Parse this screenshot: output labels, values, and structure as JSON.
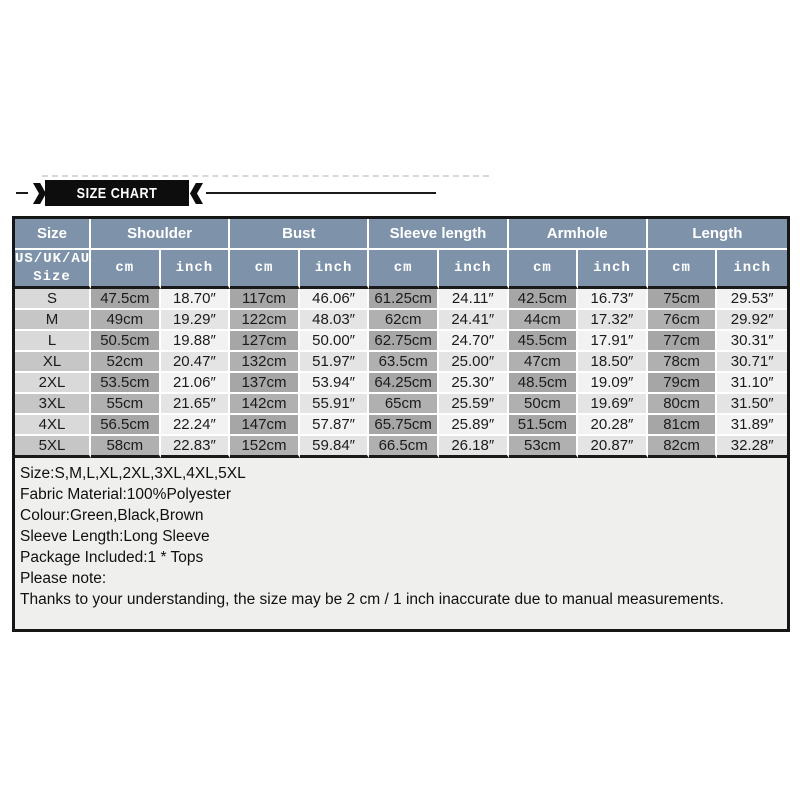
{
  "banner": {
    "title": "SIZE CHART"
  },
  "table": {
    "headers": [
      "Size",
      "Shoulder",
      "Bust",
      "Sleeve length",
      "Armhole",
      "Length"
    ],
    "subheader": {
      "group_label_line1": "US/UK/AU",
      "group_label_line2": "Size",
      "unit_cm": "cm",
      "unit_inch": "inch"
    }
  },
  "chart_data": {
    "type": "table",
    "title": "SIZE CHART",
    "columns": [
      "US/UK/AU Size",
      "Shoulder cm",
      "Shoulder inch",
      "Bust cm",
      "Bust inch",
      "Sleeve length cm",
      "Sleeve length inch",
      "Armhole cm",
      "Armhole inch",
      "Length cm",
      "Length inch"
    ],
    "rows": [
      [
        "S",
        "47.5cm",
        "18.70″",
        "117cm",
        "46.06″",
        "61.25cm",
        "24.11″",
        "42.5cm",
        "16.73″",
        "75cm",
        "29.53″"
      ],
      [
        "M",
        "49cm",
        "19.29″",
        "122cm",
        "48.03″",
        "62cm",
        "24.41″",
        "44cm",
        "17.32″",
        "76cm",
        "29.92″"
      ],
      [
        "L",
        "50.5cm",
        "19.88″",
        "127cm",
        "50.00″",
        "62.75cm",
        "24.70″",
        "45.5cm",
        "17.91″",
        "77cm",
        "30.31″"
      ],
      [
        "XL",
        "52cm",
        "20.47″",
        "132cm",
        "51.97″",
        "63.5cm",
        "25.00″",
        "47cm",
        "18.50″",
        "78cm",
        "30.71″"
      ],
      [
        "2XL",
        "53.5cm",
        "21.06″",
        "137cm",
        "53.94″",
        "64.25cm",
        "25.30″",
        "48.5cm",
        "19.09″",
        "79cm",
        "31.10″"
      ],
      [
        "3XL",
        "55cm",
        "21.65″",
        "142cm",
        "55.91″",
        "65cm",
        "25.59″",
        "50cm",
        "19.69″",
        "80cm",
        "31.50″"
      ],
      [
        "4XL",
        "56.5cm",
        "22.24″",
        "147cm",
        "57.87″",
        "65.75cm",
        "25.89″",
        "51.5cm",
        "20.28″",
        "81cm",
        "31.89″"
      ],
      [
        "5XL",
        "58cm",
        "22.83″",
        "152cm",
        "59.84″",
        "66.5cm",
        "26.18″",
        "53cm",
        "20.87″",
        "82cm",
        "32.28″"
      ]
    ]
  },
  "notes": {
    "lines": [
      "Size:S,M,L,XL,2XL,3XL,4XL,5XL",
      "Fabric Material:100%Polyester",
      "Colour:Green,Black,Brown",
      "Sleeve Length:Long Sleeve",
      "Package Included:1 * Tops",
      "Please note:",
      "Thanks to your understanding, the size may be 2 cm / 1 inch inaccurate due to manual measurements."
    ]
  },
  "colors": {
    "banner_bg": "#0d0d0d",
    "header_bg": "#7e93a9",
    "size_cell_odd": "#d9d9d9",
    "size_cell_even": "#c6c6c6",
    "cm_cell_odd": "#a6a6a6",
    "cm_cell_even": "#b0b0b0",
    "inch_cell_odd": "#f2f2f2",
    "inch_cell_even": "#e4e4e4",
    "notes_bg": "#efefed"
  }
}
